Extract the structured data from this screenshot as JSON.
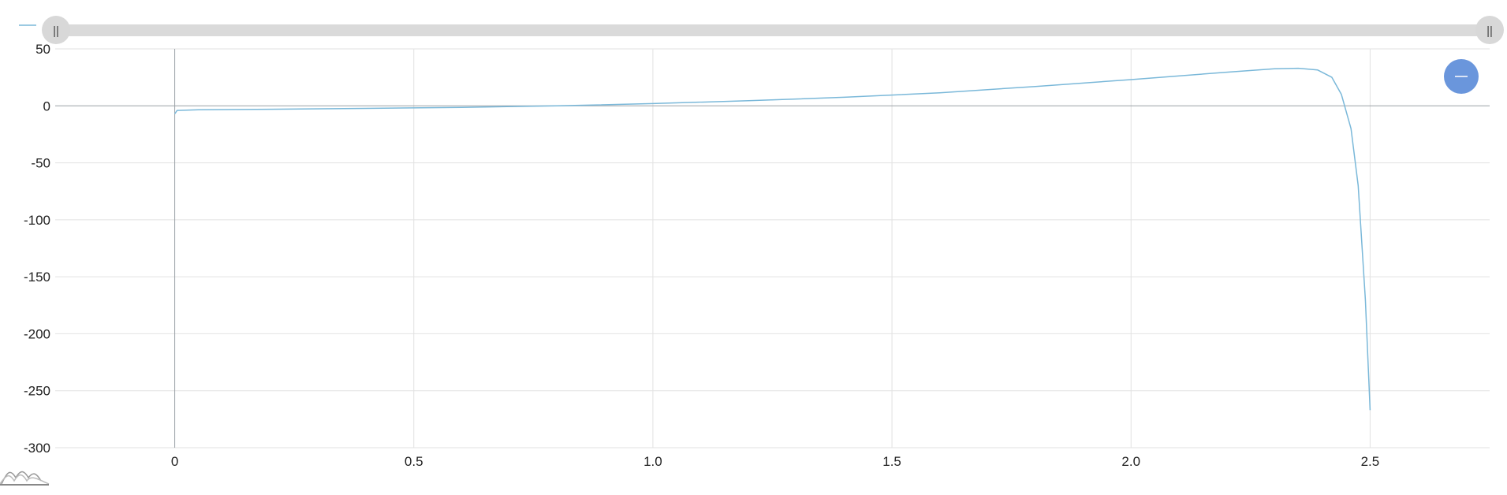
{
  "chart_data": {
    "type": "line",
    "title": "",
    "xlabel": "",
    "ylabel": "",
    "xlim": [
      -0.25,
      2.75
    ],
    "ylim": [
      -300,
      50
    ],
    "x_ticks": [
      0,
      0.5,
      1.0,
      1.5,
      2.0,
      2.5
    ],
    "x_tick_labels": [
      "0",
      "0.5",
      "1.0",
      "1.5",
      "2.0",
      "2.5"
    ],
    "y_ticks": [
      50,
      0,
      -50,
      -100,
      -150,
      -200,
      -250,
      -300
    ],
    "y_tick_labels": [
      "50",
      "0",
      "-50",
      "-100",
      "-150",
      "-200",
      "-250",
      "-300"
    ],
    "grid": true,
    "legend": "top-left",
    "series": [
      {
        "color": "#7ab8d9",
        "x": [
          0,
          0.005,
          0.05,
          0.2,
          0.4,
          0.6,
          0.8,
          1.0,
          1.2,
          1.4,
          1.6,
          1.8,
          2.0,
          2.2,
          2.3,
          2.35,
          2.39,
          2.42,
          2.44,
          2.46,
          2.475,
          2.49,
          2.5
        ],
        "y": [
          -7,
          -4,
          -3.5,
          -3,
          -2.2,
          -1.3,
          0,
          2,
          4.5,
          7.5,
          11.5,
          17,
          23,
          29.5,
          32.5,
          33,
          31.5,
          25,
          10,
          -20,
          -70,
          -170,
          -267
        ]
      }
    ]
  },
  "ui": {
    "scrollbar_left_grip": "||",
    "scrollbar_right_grip": "||",
    "zoom_out_icon": "minus-icon",
    "logo_icon": "wave-logo-icon",
    "accent_color": "#6a96dc"
  }
}
